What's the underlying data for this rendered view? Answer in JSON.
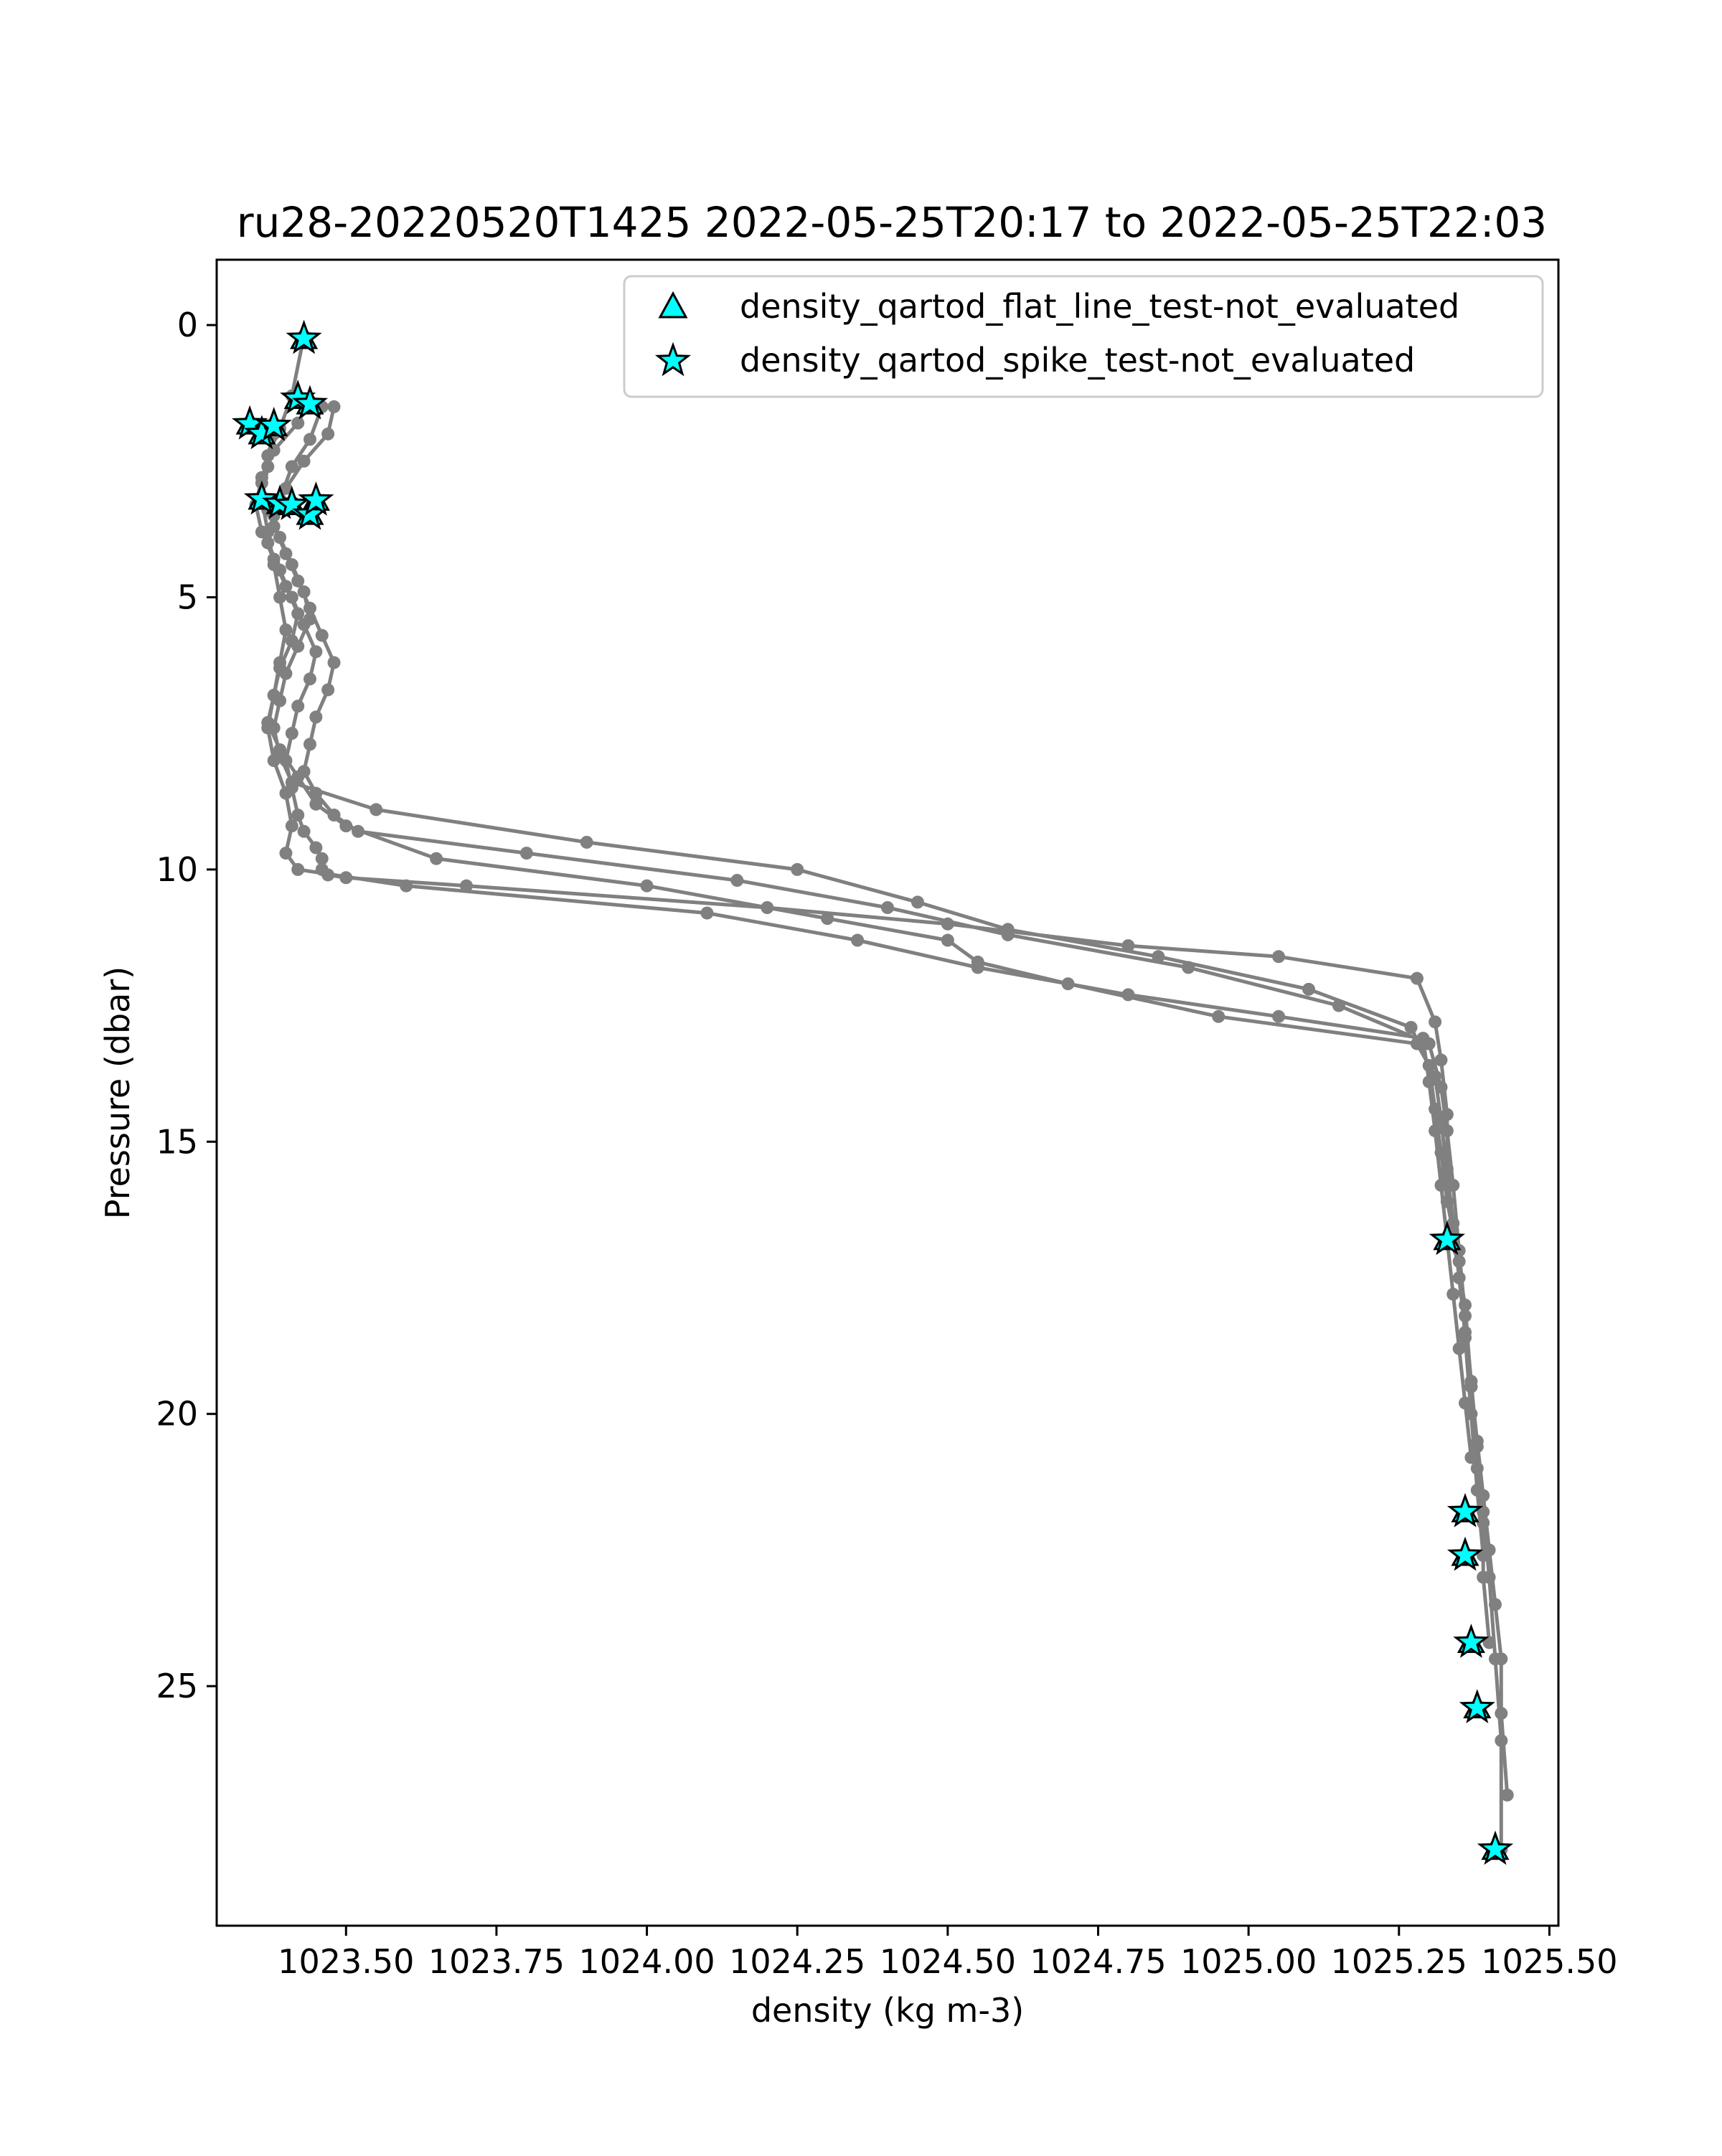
{
  "chart_data": {
    "type": "line",
    "title": "ru28-20220520T1425 2022-05-25T20:17 to 2022-05-25T22:03",
    "xlabel": "density (kg m-3)",
    "ylabel": "Pressure (dbar)",
    "xlim": [
      1023.285,
      1025.515
    ],
    "ylim": [
      29.4,
      -1.2
    ],
    "y_inverted": true,
    "grid": false,
    "legend_position": "top-right",
    "xticks": [
      1023.5,
      1023.75,
      1024.0,
      1024.25,
      1024.5,
      1024.75,
      1025.0,
      1025.25,
      1025.5
    ],
    "xtick_labels": [
      "1023.50",
      "1023.75",
      "1024.00",
      "1024.25",
      "1024.50",
      "1024.75",
      "1025.00",
      "1025.25",
      "1025.50"
    ],
    "yticks": [
      0,
      5,
      10,
      15,
      20,
      25
    ],
    "ytick_labels": [
      "0",
      "5",
      "10",
      "15",
      "20",
      "25"
    ],
    "line_color": "#808080",
    "marker_color": "#00ffff",
    "legend": [
      {
        "label": "density_qartod_flat_line_test-not_evaluated",
        "marker": "triangle"
      },
      {
        "label": "density_qartod_spike_test-not_evaluated",
        "marker": "star"
      }
    ],
    "series": [
      {
        "x": [
          1023.48,
          1023.47,
          1023.43,
          1023.4,
          1023.38,
          1023.37,
          1023.39,
          1023.41,
          1023.43,
          1023.45,
          1023.44,
          1023.42,
          1023.41,
          1023.4,
          1023.41,
          1023.42,
          1023.43,
          1023.45,
          1023.46,
          1023.46,
          1023.47,
          1023.5,
          1023.7,
          1024.2,
          1024.5,
          1024.8,
          1025.05,
          1025.28,
          1025.31,
          1025.32,
          1025.33,
          1025.33,
          1025.34,
          1025.35,
          1025.36,
          1025.37,
          1025.38,
          1025.39,
          1025.4,
          1025.41,
          1025.42,
          1025.42,
          1025.43
        ],
        "y": [
          1.5,
          2.0,
          2.5,
          3.0,
          3.5,
          4.0,
          4.5,
          5.0,
          5.5,
          6.0,
          6.5,
          7.0,
          7.5,
          8.0,
          8.5,
          9.0,
          9.3,
          9.6,
          9.8,
          10.0,
          10.1,
          10.15,
          10.3,
          10.7,
          11.0,
          11.4,
          11.6,
          12.0,
          12.8,
          13.5,
          14.5,
          15.5,
          16.5,
          17.5,
          18.5,
          19.5,
          20.5,
          21.5,
          22.5,
          23.5,
          24.5,
          25.5,
          27.0
        ]
      },
      {
        "x": [
          1023.44,
          1023.42,
          1023.38,
          1023.36,
          1023.35,
          1023.36,
          1023.38,
          1023.4,
          1023.42,
          1023.41,
          1023.39,
          1023.38,
          1023.37,
          1023.39,
          1023.42,
          1023.45,
          1023.5,
          1023.65,
          1024.0,
          1024.3,
          1024.5,
          1024.55,
          1024.7,
          1024.95,
          1025.28,
          1025.31,
          1025.32,
          1025.33,
          1025.34,
          1025.36,
          1025.37,
          1025.38,
          1025.39,
          1025.39,
          1025.4
        ],
        "y": [
          1.4,
          1.8,
          2.3,
          2.8,
          3.3,
          3.8,
          4.3,
          4.8,
          5.3,
          5.8,
          6.3,
          6.8,
          7.3,
          7.8,
          8.3,
          8.8,
          9.2,
          9.8,
          10.3,
          10.9,
          11.3,
          11.7,
          12.1,
          12.7,
          13.2,
          13.8,
          14.6,
          15.6,
          16.8,
          18.0,
          19.5,
          21.0,
          22.0,
          23.0,
          24.2
        ]
      },
      {
        "x": [
          1023.43,
          1023.41,
          1023.39,
          1023.37,
          1023.36,
          1023.37,
          1023.39,
          1023.41,
          1023.43,
          1023.44,
          1023.42,
          1023.4,
          1023.39,
          1023.38,
          1023.39,
          1023.41,
          1023.55,
          1023.9,
          1024.25,
          1024.45,
          1024.6,
          1024.85,
          1025.1,
          1025.27,
          1025.3,
          1025.31,
          1025.32,
          1025.33,
          1025.35,
          1025.36,
          1025.37,
          1025.38,
          1025.39
        ],
        "y": [
          0.2,
          1.3,
          1.9,
          2.4,
          2.9,
          3.4,
          3.9,
          4.4,
          4.9,
          5.4,
          5.9,
          6.4,
          6.9,
          7.4,
          7.9,
          8.4,
          8.9,
          9.5,
          10.0,
          10.6,
          11.1,
          11.6,
          12.2,
          12.9,
          13.6,
          14.4,
          15.2,
          16.1,
          17.2,
          18.6,
          20.0,
          21.4,
          22.6
        ]
      },
      {
        "x": [
          1023.46,
          1023.44,
          1023.41,
          1023.39,
          1023.38,
          1023.4,
          1023.42,
          1023.44,
          1023.46,
          1023.48,
          1023.47,
          1023.45,
          1023.44,
          1023.43,
          1023.45,
          1023.48,
          1023.52,
          1023.8,
          1024.15,
          1024.4,
          1024.6,
          1024.9,
          1025.15,
          1025.3,
          1025.32,
          1025.33,
          1025.34,
          1025.35,
          1025.36,
          1025.37,
          1025.38,
          1025.39,
          1025.4,
          1025.41,
          1025.42,
          1025.42
        ],
        "y": [
          1.5,
          2.1,
          2.6,
          3.2,
          3.7,
          4.2,
          4.7,
          5.2,
          5.7,
          6.2,
          6.7,
          7.2,
          7.7,
          8.2,
          8.6,
          9.0,
          9.3,
          9.7,
          10.2,
          10.7,
          11.2,
          11.8,
          12.5,
          13.2,
          14.0,
          14.8,
          15.8,
          17.0,
          18.2,
          19.4,
          20.6,
          21.8,
          23.0,
          24.5,
          26.0,
          28.0
        ]
      },
      {
        "x": [
          1023.38,
          1023.37,
          1023.36,
          1023.37,
          1023.38,
          1023.39,
          1023.4,
          1023.39,
          1023.38,
          1023.37,
          1023.38,
          1023.4,
          1023.41,
          1023.4,
          1023.42,
          1023.6,
          1024.1,
          1024.35,
          1024.55,
          1024.8,
          1025.05,
          1025.29,
          1025.3,
          1025.31,
          1025.32,
          1025.33,
          1025.34,
          1025.35,
          1025.36,
          1025.37
        ],
        "y": [
          2.0,
          2.6,
          3.2,
          3.8,
          4.4,
          5.0,
          5.6,
          6.2,
          6.8,
          7.4,
          8.0,
          8.6,
          9.2,
          9.7,
          10.0,
          10.3,
          10.8,
          11.3,
          11.8,
          12.3,
          12.7,
          13.1,
          13.9,
          14.8,
          15.8,
          16.8,
          17.8,
          18.8,
          19.8,
          20.8
        ]
      }
    ],
    "flagged_points": {
      "flat_line_test": [
        {
          "x": 1023.43,
          "y": 0.25
        },
        {
          "x": 1023.42,
          "y": 1.35
        },
        {
          "x": 1023.44,
          "y": 1.45
        },
        {
          "x": 1023.34,
          "y": 1.82
        },
        {
          "x": 1023.36,
          "y": 2.0
        },
        {
          "x": 1023.38,
          "y": 1.85
        },
        {
          "x": 1023.36,
          "y": 3.2
        },
        {
          "x": 1023.39,
          "y": 3.28
        },
        {
          "x": 1023.41,
          "y": 3.3
        },
        {
          "x": 1023.44,
          "y": 3.48
        },
        {
          "x": 1023.45,
          "y": 3.22
        },
        {
          "x": 1025.33,
          "y": 16.8
        },
        {
          "x": 1025.36,
          "y": 21.8
        },
        {
          "x": 1025.36,
          "y": 22.6
        },
        {
          "x": 1025.37,
          "y": 24.2
        },
        {
          "x": 1025.38,
          "y": 25.4
        },
        {
          "x": 1025.41,
          "y": 28.0
        }
      ],
      "spike_test": [
        {
          "x": 1023.43,
          "y": 0.25
        },
        {
          "x": 1023.42,
          "y": 1.35
        },
        {
          "x": 1023.44,
          "y": 1.45
        },
        {
          "x": 1023.34,
          "y": 1.82
        },
        {
          "x": 1023.36,
          "y": 2.0
        },
        {
          "x": 1023.38,
          "y": 1.85
        },
        {
          "x": 1023.36,
          "y": 3.2
        },
        {
          "x": 1023.39,
          "y": 3.28
        },
        {
          "x": 1023.41,
          "y": 3.3
        },
        {
          "x": 1023.44,
          "y": 3.48
        },
        {
          "x": 1023.45,
          "y": 3.22
        },
        {
          "x": 1025.33,
          "y": 16.8
        },
        {
          "x": 1025.36,
          "y": 21.8
        },
        {
          "x": 1025.36,
          "y": 22.6
        },
        {
          "x": 1025.37,
          "y": 24.2
        },
        {
          "x": 1025.38,
          "y": 25.4
        },
        {
          "x": 1025.41,
          "y": 28.0
        }
      ]
    }
  }
}
